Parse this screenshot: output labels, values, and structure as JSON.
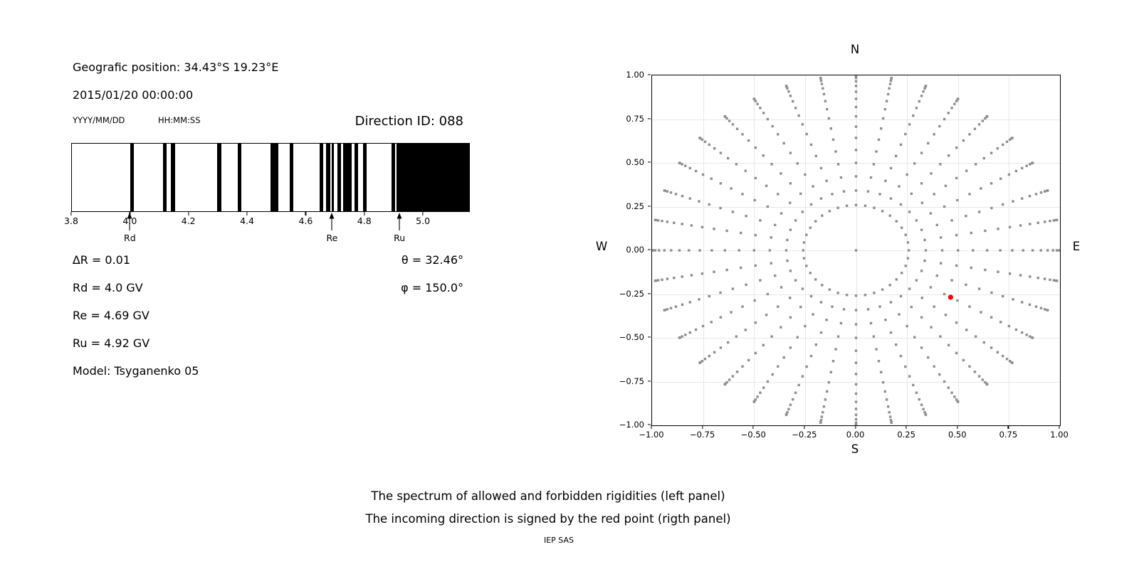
{
  "header": {
    "geo_position": "Geografic position: 34.43°S 19.23°E",
    "datetime": "2015/01/20 00:00:00",
    "date_format_label": "YYYY/MM/DD",
    "time_format_label": "HH:MM:SS",
    "direction_id": "Direction ID: 088"
  },
  "info": {
    "delta_r": "∆R = 0.01",
    "rd": "Rd = 4.0 GV",
    "re": "Re = 4.69 GV",
    "ru": "Ru = 4.92 GV",
    "model": "Model: Tsyganenko 05",
    "theta": "θ = 32.46°",
    "phi": "φ = 150.0°"
  },
  "caption": {
    "line1": "The spectrum of allowed and forbidden rigidities (left panel)",
    "line2": "The incoming direction is signed by the red point (rigth panel)",
    "credit": "IEP SAS"
  },
  "colors": {
    "background": "#ffffff",
    "text": "#000000",
    "bars": "#000000",
    "grid": "#e8e8e8",
    "dots": "#8f8f8f",
    "red_point": "#ff0000"
  },
  "chart_data": [
    {
      "id": "rigidity-spectrum",
      "type": "barcode",
      "description": "Spectrum of allowed (black) and forbidden (white) rigidities, GV",
      "xlim": [
        3.8,
        5.16
      ],
      "x_ticks": [
        3.8,
        4.0,
        4.2,
        4.4,
        4.6,
        4.8,
        5.0
      ],
      "x_tick_labels": [
        "3.8",
        "4.0",
        "4.2",
        "4.4",
        "4.6",
        "4.8",
        "5.0"
      ],
      "allowed_bands_gv": [
        [
          4.0,
          4.013
        ],
        [
          4.112,
          4.125
        ],
        [
          4.139,
          4.153
        ],
        [
          4.297,
          4.312
        ],
        [
          4.367,
          4.381
        ],
        [
          4.479,
          4.508
        ],
        [
          4.546,
          4.559
        ],
        [
          4.647,
          4.661
        ],
        [
          4.67,
          4.684
        ],
        [
          4.689,
          4.697
        ],
        [
          4.708,
          4.722
        ],
        [
          4.729,
          4.758
        ],
        [
          4.768,
          4.781
        ],
        [
          4.796,
          4.81
        ],
        [
          4.894,
          4.907
        ],
        [
          4.912,
          5.16
        ]
      ],
      "annotations": [
        {
          "label": "Rd",
          "x": 4.0
        },
        {
          "label": "Re",
          "x": 4.69
        },
        {
          "label": "Ru",
          "x": 4.92
        }
      ]
    },
    {
      "id": "incoming-direction",
      "type": "scatter",
      "description": "Grid of directions (gray dots); incoming direction is the red point",
      "compass": {
        "north": "N",
        "south": "S",
        "east": "E",
        "west": "W"
      },
      "xlim": [
        -1,
        1
      ],
      "ylim": [
        -1,
        1
      ],
      "x_ticks": [
        -1,
        -0.75,
        -0.5,
        -0.25,
        0,
        0.25,
        0.5,
        0.75,
        1
      ],
      "x_tick_labels": [
        "−1.00",
        "−0.75",
        "−0.50",
        "−0.25",
        "0.00",
        "0.25",
        "0.50",
        "0.75",
        "1.00"
      ],
      "y_ticks": [
        1,
        0.75,
        0.5,
        0.25,
        0,
        -0.25,
        -0.5,
        -0.75,
        -1
      ],
      "y_tick_labels": [
        "1.00",
        "0.75",
        "0.50",
        "0.25",
        "0.00",
        "−0.25",
        "−0.50",
        "−0.75",
        "−1.00"
      ],
      "grid_step": 0.25,
      "direction_grid": {
        "azimuth_deg": {
          "start": 0,
          "stop": 350,
          "step": 10
        },
        "zenith_deg": {
          "start": 15,
          "stop": 90,
          "step": 5
        },
        "radius_rule": "sin(zenith)",
        "center_point": true
      },
      "red_point": {
        "x": 0.464,
        "y": -0.268
      }
    }
  ]
}
